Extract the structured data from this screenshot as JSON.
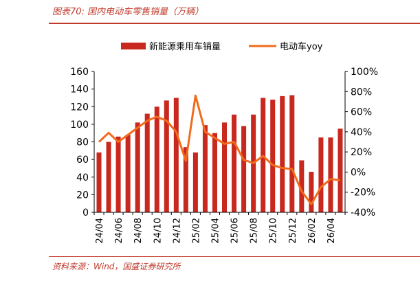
{
  "figure": {
    "title": "图表70:  国内电动车零售销量（万辆）",
    "source": "资料来源：Wind，国盛证券研究所"
  },
  "chart_data": {
    "type": "bar",
    "categories": [
      "24/04",
      "24/05",
      "24/06",
      "24/07",
      "24/08",
      "24/09",
      "24/10",
      "24/11",
      "24/12",
      "25/01",
      "25/02",
      "25/03",
      "25/04",
      "25/05",
      "25/06",
      "25/07",
      "25/08",
      "25/09",
      "25/10",
      "25/11",
      "25/12",
      "26/01",
      "26/02",
      "26/03",
      "26/04",
      "26/05"
    ],
    "x_tick_labels": [
      "24/04",
      "24/06",
      "24/08",
      "24/10",
      "24/12",
      "25/02",
      "25/04",
      "25/06",
      "25/08",
      "25/10",
      "25/12",
      "26/02",
      "26/04"
    ],
    "series": [
      {
        "name": "新能源乘用车销量",
        "type": "bar",
        "axis": "left",
        "color": "#c8281e",
        "values": [
          68,
          80,
          86,
          88,
          102,
          112,
          120,
          127,
          130,
          74,
          68,
          99,
          90,
          102,
          111,
          98,
          111,
          130,
          128,
          132,
          133,
          59,
          46,
          85,
          85,
          95
        ]
      },
      {
        "name": "电动车yoy",
        "type": "line",
        "axis": "right",
        "color": "#f26a1b",
        "values": [
          30,
          39,
          30,
          37,
          44,
          51,
          55,
          51,
          40,
          11,
          76,
          40,
          34,
          28,
          30,
          12,
          9,
          16,
          7,
          4,
          3,
          -19,
          -32,
          -15,
          -7,
          -8
        ]
      }
    ],
    "y_left": {
      "min": 0,
      "max": 160,
      "ticks": [
        "0",
        "20",
        "40",
        "60",
        "80",
        "100",
        "120",
        "140",
        "160"
      ]
    },
    "y_right": {
      "min": -40,
      "max": 100,
      "ticks": [
        "-40%",
        "-20%",
        "0%",
        "20%",
        "40%",
        "60%",
        "80%",
        "100%"
      ]
    },
    "legend": {
      "position": "top"
    }
  }
}
